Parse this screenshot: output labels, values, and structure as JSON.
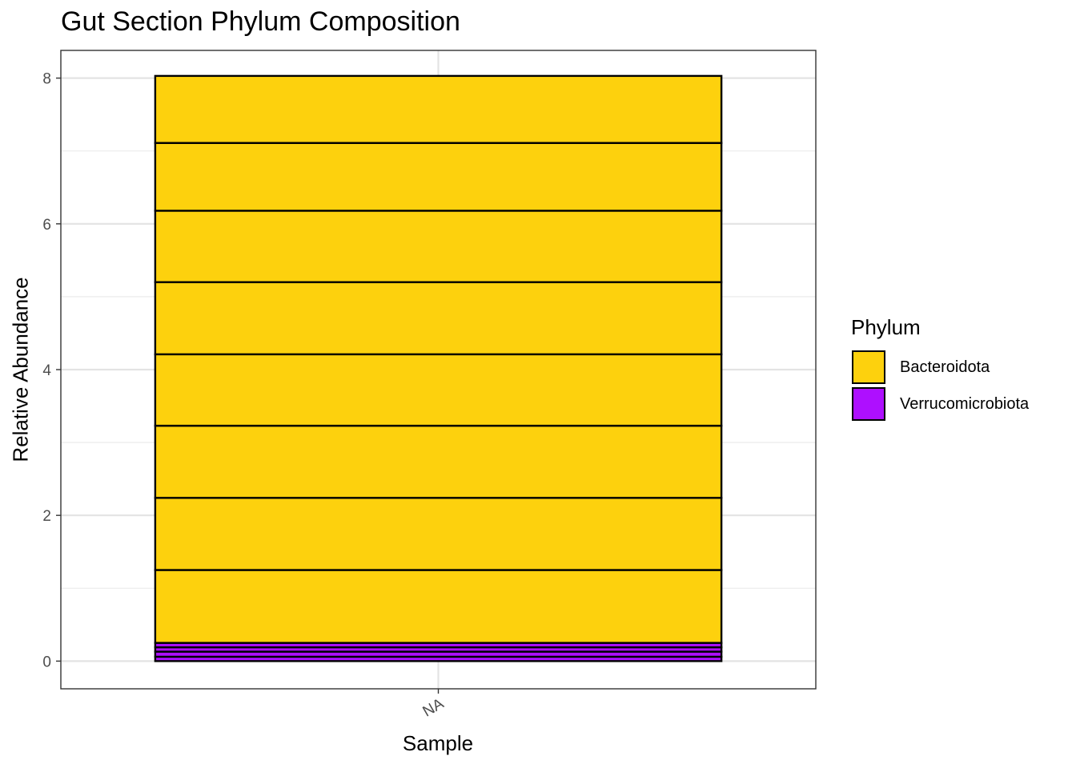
{
  "chart_data": {
    "type": "bar",
    "stacked": true,
    "title": "Gut Section Phylum Composition",
    "xlabel": "Sample",
    "ylabel": "Relative Abundance",
    "categories": [
      "NA"
    ],
    "ylim": [
      -0.38,
      8.38
    ],
    "yticks": [
      0,
      2,
      4,
      6,
      8
    ],
    "grid": true,
    "legend": {
      "title": "Phylum",
      "position": "right",
      "entries": [
        {
          "name": "Bacteroidota",
          "color": "#FDD10D"
        },
        {
          "name": "Verrucomicrobiota",
          "color": "#AE0FFF"
        }
      ]
    },
    "segments": [
      {
        "phylum": "Verrucomicrobiota",
        "value": 0.06
      },
      {
        "phylum": "Verrucomicrobiota",
        "value": 0.07
      },
      {
        "phylum": "Verrucomicrobiota",
        "value": 0.06
      },
      {
        "phylum": "Verrucomicrobiota",
        "value": 0.06
      },
      {
        "phylum": "Bacteroidota",
        "value": 1.0
      },
      {
        "phylum": "Bacteroidota",
        "value": 0.99
      },
      {
        "phylum": "Bacteroidota",
        "value": 0.99
      },
      {
        "phylum": "Bacteroidota",
        "value": 0.98
      },
      {
        "phylum": "Bacteroidota",
        "value": 0.99
      },
      {
        "phylum": "Bacteroidota",
        "value": 0.98
      },
      {
        "phylum": "Bacteroidota",
        "value": 0.93
      },
      {
        "phylum": "Bacteroidota",
        "value": 0.92
      }
    ]
  }
}
